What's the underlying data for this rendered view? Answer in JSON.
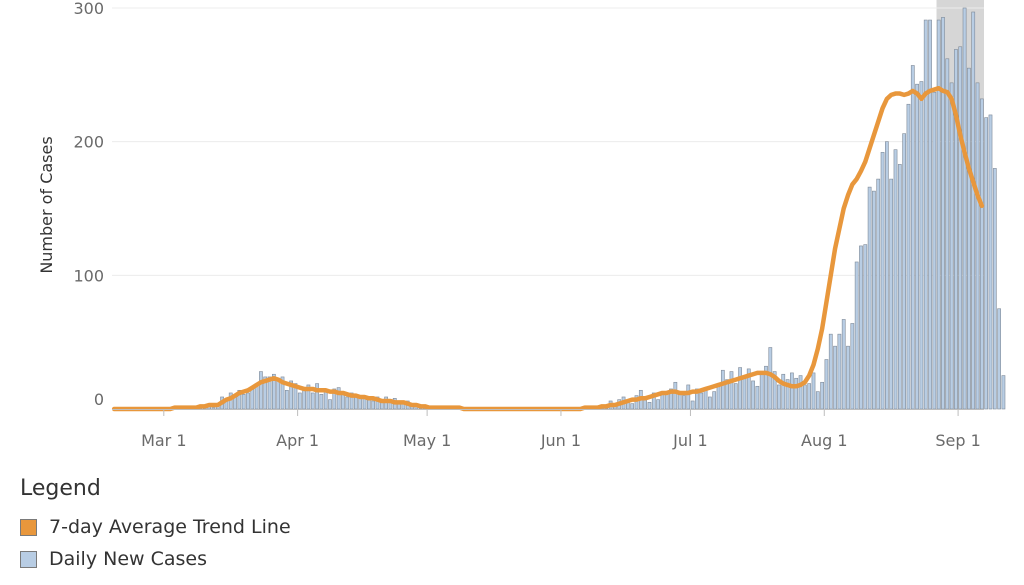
{
  "chart_data": {
    "type": "bar",
    "x_start": "2020-02-18",
    "x_end": "2020-09-06",
    "xticks": [
      {
        "date": "2020-03-01",
        "label": "Mar 1"
      },
      {
        "date": "2020-04-01",
        "label": "Apr 1"
      },
      {
        "date": "2020-05-01",
        "label": "May 1"
      },
      {
        "date": "2020-06-01",
        "label": "Jun 1"
      },
      {
        "date": "2020-07-01",
        "label": "Jul 1"
      },
      {
        "date": "2020-08-01",
        "label": "Aug 1"
      },
      {
        "date": "2020-09-01",
        "label": "Sep 1"
      }
    ],
    "ylabel": "Number of Cases",
    "ylim": [
      0,
      300
    ],
    "yticks": [
      0,
      100,
      200,
      300
    ],
    "shaded_period": {
      "start": "2020-08-27",
      "end": "2020-09-06"
    },
    "series": [
      {
        "name": "Daily New Cases",
        "kind": "bar",
        "color": "#b8cde4",
        "values": [
          0,
          0,
          0,
          0,
          0,
          0,
          0,
          0,
          0,
          0,
          0,
          1,
          0,
          0,
          1,
          0,
          1,
          0,
          1,
          2,
          1,
          3,
          2,
          1,
          3,
          9,
          6,
          12,
          10,
          14,
          11,
          12,
          15,
          17,
          28,
          24,
          24,
          26,
          21,
          24,
          14,
          21,
          19,
          12,
          16,
          18,
          12,
          19,
          11,
          15,
          7,
          15,
          16,
          11,
          9,
          12,
          10,
          10,
          8,
          7,
          6,
          9,
          6,
          9,
          7,
          8,
          6,
          4,
          6,
          3,
          4,
          2,
          1,
          2,
          1,
          1,
          1,
          0,
          1,
          0,
          1,
          0,
          0,
          1,
          0,
          0,
          1,
          0,
          0,
          1,
          0,
          0,
          1,
          0,
          0,
          0,
          1,
          0,
          0,
          1,
          0,
          0,
          0,
          1,
          0,
          1,
          0,
          1,
          0,
          1,
          0,
          2,
          1,
          3,
          2,
          6,
          3,
          7,
          9,
          6,
          4,
          10,
          14,
          8,
          5,
          12,
          7,
          13,
          11,
          15,
          20,
          13,
          10,
          18,
          6,
          15,
          12,
          14,
          9,
          13,
          17,
          29,
          22,
          28,
          19,
          31,
          23,
          30,
          21,
          17,
          27,
          32,
          46,
          28,
          18,
          26,
          22,
          27,
          23,
          25,
          18,
          19,
          27,
          13,
          20,
          37,
          56,
          47,
          56,
          67,
          47,
          64,
          110,
          122,
          123,
          166,
          163,
          172,
          192,
          200,
          172,
          194,
          183,
          206,
          228,
          257,
          243,
          245,
          291,
          291,
          237,
          291,
          293,
          262,
          244,
          269,
          271,
          300,
          255,
          297,
          244,
          232,
          218,
          220,
          180,
          75,
          25
        ],
        "note": ""
      },
      {
        "name": "7-day Average Trend Line",
        "kind": "line",
        "color": "#e8973c",
        "values": [
          0,
          0,
          0,
          0,
          0,
          0,
          0,
          0,
          0,
          0,
          0,
          0,
          0,
          0,
          1,
          1,
          1,
          1,
          1,
          1,
          2,
          2,
          3,
          3,
          3,
          5,
          7,
          8,
          10,
          12,
          13,
          14,
          16,
          18,
          20,
          21,
          22,
          23,
          22,
          20,
          19,
          18,
          17,
          16,
          15,
          15,
          15,
          14,
          14,
          14,
          13,
          13,
          12,
          12,
          11,
          10,
          10,
          9,
          9,
          8,
          8,
          7,
          6,
          6,
          6,
          5,
          5,
          5,
          4,
          3,
          3,
          2,
          2,
          1,
          1,
          1,
          1,
          1,
          1,
          1,
          1,
          0,
          0,
          0,
          0,
          0,
          0,
          0,
          0,
          0,
          0,
          0,
          0,
          0,
          0,
          0,
          0,
          0,
          0,
          0,
          0,
          0,
          0,
          0,
          0,
          0,
          0,
          0,
          0,
          1,
          1,
          1,
          1,
          2,
          2,
          3,
          3,
          4,
          5,
          6,
          7,
          7,
          8,
          8,
          9,
          10,
          11,
          12,
          12,
          13,
          13,
          12,
          12,
          12,
          13,
          13,
          14,
          15,
          16,
          17,
          18,
          19,
          20,
          21,
          22,
          23,
          24,
          25,
          26,
          27,
          27,
          27,
          26,
          24,
          21,
          19,
          18,
          17,
          17,
          18,
          20,
          25,
          33,
          45,
          60,
          80,
          100,
          120,
          135,
          150,
          160,
          168,
          172,
          178,
          185,
          195,
          205,
          215,
          225,
          232,
          235,
          236,
          236,
          235,
          236,
          238,
          236,
          232,
          236,
          238,
          239,
          240,
          238,
          237,
          232,
          220,
          205,
          192,
          180,
          170,
          160,
          152
        ],
        "note": ""
      }
    ],
    "legend_title": "Legend",
    "legend": [
      {
        "label": "7-day Average Trend Line",
        "color": "#e8973c"
      },
      {
        "label": "Daily New Cases",
        "color": "#b8cde4"
      }
    ]
  }
}
